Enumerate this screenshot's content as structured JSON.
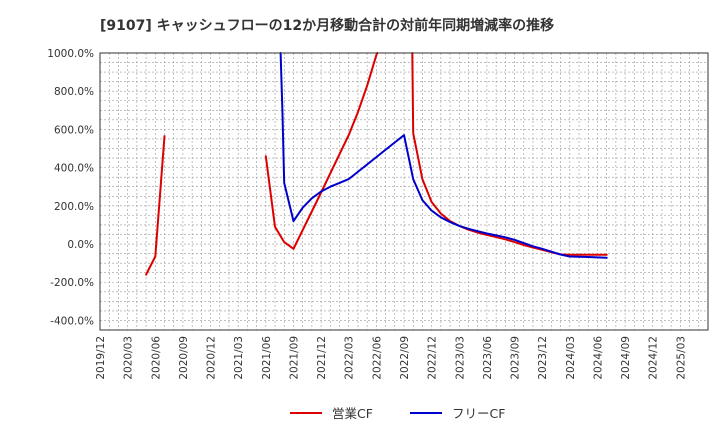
{
  "chart_data": {
    "type": "line",
    "title": "[9107]  キャッシュフローの12か月移動合計の対前年同期増減率の推移",
    "xlabel": "",
    "ylabel": "",
    "ylim": [
      -450,
      1000
    ],
    "y_ticks": [
      1000,
      800,
      600,
      400,
      200,
      0,
      -200,
      -400
    ],
    "y_tick_labels": [
      "1000.0%",
      "800.0%",
      "600.0%",
      "400.0%",
      "200.0%",
      "0.0%",
      "-200.0%",
      "-400.0%"
    ],
    "x_range": [
      0,
      66
    ],
    "x_ticks": [
      "2019/12",
      "2020/03",
      "2020/06",
      "2020/09",
      "2020/12",
      "2021/03",
      "2021/06",
      "2021/09",
      "2021/12",
      "2022/03",
      "2022/06",
      "2022/09",
      "2022/12",
      "2023/03",
      "2023/06",
      "2023/09",
      "2023/12",
      "2024/03",
      "2024/06",
      "2024/09",
      "2024/12",
      "2025/03"
    ],
    "grid": true,
    "legend_position": "bottom-center",
    "series": [
      {
        "name": "営業CF",
        "color": "#dd0000",
        "segments": [
          [
            [
              5,
              -160
            ],
            [
              6,
              -65
            ],
            [
              7,
              565
            ]
          ],
          [
            [
              18,
              460
            ],
            [
              19,
              90
            ],
            [
              20,
              10
            ],
            [
              21,
              -25
            ],
            [
              24,
              270
            ],
            [
              27,
              570
            ],
            [
              28,
              690
            ],
            [
              29,
              830
            ],
            [
              30,
              990
            ],
            [
              30.1,
              1000
            ]
          ],
          [
            [
              33.9,
              1000
            ],
            [
              34,
              580
            ],
            [
              35,
              340
            ],
            [
              36,
              220
            ],
            [
              37,
              160
            ],
            [
              38,
              120
            ],
            [
              39,
              95
            ],
            [
              40,
              75
            ],
            [
              41,
              60
            ],
            [
              42,
              48
            ],
            [
              43,
              37
            ],
            [
              44,
              25
            ],
            [
              45,
              10
            ],
            [
              46,
              -5
            ],
            [
              47,
              -18
            ],
            [
              48,
              -30
            ],
            [
              49,
              -43
            ],
            [
              50,
              -55
            ],
            [
              51,
              -56
            ],
            [
              52,
              -56
            ],
            [
              53,
              -56
            ],
            [
              54,
              -56
            ],
            [
              55,
              -56
            ]
          ]
        ]
      },
      {
        "name": "フリーCF",
        "color": "#0000cc",
        "segments": [
          [
            [
              19.6,
              1000
            ],
            [
              19.8,
              700
            ],
            [
              20,
              320
            ],
            [
              21,
              120
            ],
            [
              22,
              190
            ],
            [
              23,
              240
            ],
            [
              24,
              275
            ],
            [
              25,
              300
            ],
            [
              26,
              320
            ],
            [
              27,
              340
            ],
            [
              33,
              570
            ],
            [
              34,
              340
            ],
            [
              35,
              230
            ],
            [
              36,
              175
            ],
            [
              37,
              140
            ],
            [
              38,
              115
            ],
            [
              39,
              95
            ],
            [
              40,
              80
            ],
            [
              41,
              67
            ],
            [
              42,
              55
            ],
            [
              43,
              45
            ],
            [
              44,
              35
            ],
            [
              45,
              22
            ],
            [
              46,
              5
            ],
            [
              47,
              -12
            ],
            [
              48,
              -25
            ],
            [
              49,
              -40
            ],
            [
              50,
              -55
            ],
            [
              51,
              -65
            ],
            [
              52,
              -67
            ],
            [
              53,
              -68
            ],
            [
              54,
              -70
            ],
            [
              55,
              -72
            ]
          ]
        ]
      }
    ]
  }
}
